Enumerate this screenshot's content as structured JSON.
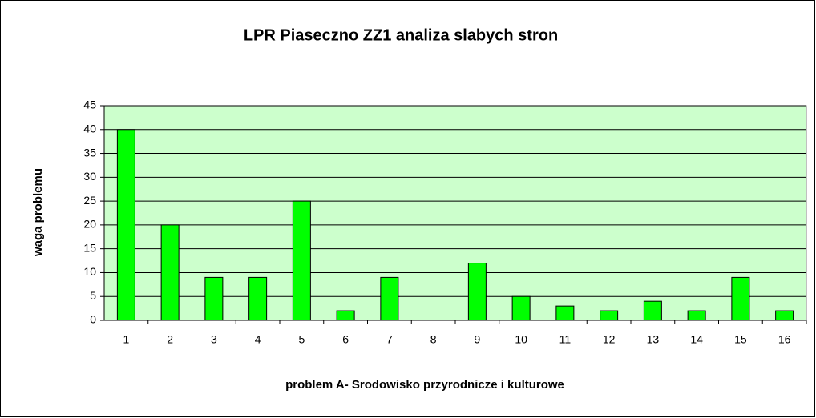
{
  "chart_data": {
    "type": "bar",
    "title": "LPR Piaseczno ZZ1 analiza slabych stron",
    "x_label": "problem A- Srodowisko przyrodnicze i kulturowe",
    "y_label": "waga problemu",
    "categories": [
      "1",
      "2",
      "3",
      "4",
      "5",
      "6",
      "7",
      "8",
      "9",
      "10",
      "11",
      "12",
      "13",
      "14",
      "15",
      "16"
    ],
    "values": [
      40,
      20,
      9,
      9,
      25,
      2,
      9,
      0,
      12,
      5,
      3,
      2,
      4,
      2,
      9,
      2
    ],
    "color": "#00ff00",
    "ylim": [
      0,
      45
    ],
    "yticks": [
      0,
      5,
      10,
      15,
      20,
      25,
      30,
      35,
      40,
      45
    ],
    "grid": true
  }
}
